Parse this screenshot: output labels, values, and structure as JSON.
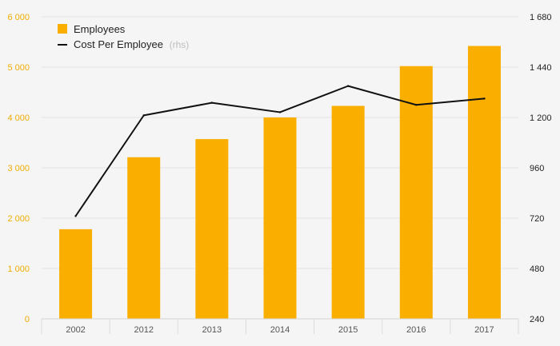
{
  "chart_data": {
    "type": "bar",
    "categories": [
      "2002",
      "2012",
      "2013",
      "2014",
      "2015",
      "2016",
      "2017"
    ],
    "series": [
      {
        "name": "Employees",
        "type": "bar",
        "axis": "left",
        "color": "#f9ae00",
        "values": [
          1780,
          3210,
          3570,
          4000,
          4230,
          5020,
          5420
        ]
      },
      {
        "name": "Cost Per Employee",
        "legend_suffix": "(rhs)",
        "type": "line",
        "axis": "right",
        "color": "#111111",
        "values": [
          730,
          1210,
          1270,
          1225,
          1350,
          1260,
          1290
        ]
      }
    ],
    "y_left": {
      "ylim": [
        0,
        6000
      ],
      "ticks": [
        0,
        1000,
        2000,
        3000,
        4000,
        5000,
        6000
      ],
      "tick_labels": [
        "0",
        "1 000",
        "2 000",
        "3 000",
        "4 000",
        "5 000",
        "6 000"
      ],
      "color": "#f0ad00"
    },
    "y_right": {
      "ylim": [
        240,
        1680
      ],
      "ticks": [
        240,
        480,
        720,
        960,
        1200,
        1440,
        1680
      ],
      "tick_labels": [
        "240",
        "480",
        "720",
        "960",
        "1 200",
        "1 440",
        "1 680"
      ]
    },
    "grid": true,
    "legend_position": "top-left"
  }
}
